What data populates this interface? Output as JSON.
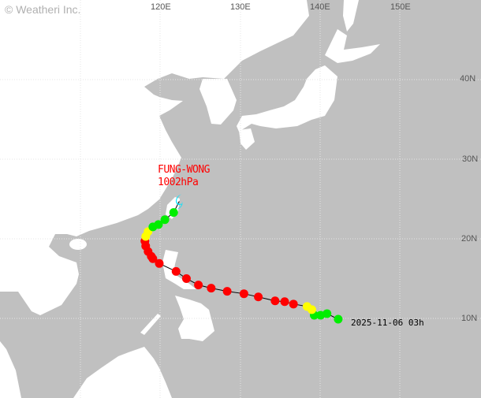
{
  "copyright": "© Weatheri Inc.",
  "axes": {
    "lon_labels": [
      "120E",
      "130E",
      "140E",
      "150E"
    ],
    "lat_labels": [
      "40N",
      "30N",
      "20N",
      "10N"
    ]
  },
  "storm": {
    "name": "FUNG-WONG",
    "pressure": "1002hPa",
    "start_label": "2025-11-06 03h"
  },
  "colors": {
    "land": "#ffffff",
    "sea": "#c0c0c0",
    "track_line": "#000000",
    "red": "#ff0000",
    "yellow": "#ffff00",
    "green": "#00ee00",
    "cyan": "#00e5ff"
  },
  "track": [
    {
      "lon": 142.3,
      "lat": 9.9,
      "color": "green"
    },
    {
      "lon": 140.9,
      "lat": 10.6,
      "color": "green"
    },
    {
      "lon": 140.1,
      "lat": 10.4,
      "color": "green"
    },
    {
      "lon": 139.3,
      "lat": 10.4,
      "color": "green"
    },
    {
      "lon": 139.0,
      "lat": 11.1,
      "color": "yellow"
    },
    {
      "lon": 138.4,
      "lat": 11.5,
      "color": "yellow"
    },
    {
      "lon": 136.7,
      "lat": 11.8,
      "color": "red"
    },
    {
      "lon": 135.6,
      "lat": 12.1,
      "color": "red"
    },
    {
      "lon": 134.4,
      "lat": 12.2,
      "color": "red"
    },
    {
      "lon": 132.3,
      "lat": 12.7,
      "color": "red"
    },
    {
      "lon": 130.5,
      "lat": 13.1,
      "color": "red"
    },
    {
      "lon": 128.4,
      "lat": 13.4,
      "color": "red"
    },
    {
      "lon": 126.4,
      "lat": 13.8,
      "color": "red"
    },
    {
      "lon": 124.8,
      "lat": 14.2,
      "color": "red"
    },
    {
      "lon": 123.3,
      "lat": 15.0,
      "color": "red"
    },
    {
      "lon": 122.0,
      "lat": 15.9,
      "color": "red"
    },
    {
      "lon": 119.9,
      "lat": 16.9,
      "color": "red"
    },
    {
      "lon": 119.1,
      "lat": 17.5,
      "color": "red"
    },
    {
      "lon": 118.9,
      "lat": 17.8,
      "color": "red"
    },
    {
      "lon": 118.5,
      "lat": 18.4,
      "color": "red"
    },
    {
      "lon": 118.2,
      "lat": 19.1,
      "color": "red"
    },
    {
      "lon": 118.1,
      "lat": 19.7,
      "color": "red"
    },
    {
      "lon": 118.2,
      "lat": 20.3,
      "color": "yellow"
    },
    {
      "lon": 118.5,
      "lat": 20.9,
      "color": "yellow"
    },
    {
      "lon": 119.1,
      "lat": 21.5,
      "color": "green"
    },
    {
      "lon": 119.8,
      "lat": 21.8,
      "color": "green"
    },
    {
      "lon": 120.6,
      "lat": 22.4,
      "color": "green"
    },
    {
      "lon": 121.7,
      "lat": 23.3,
      "color": "green"
    },
    {
      "lon": 122.4,
      "lat": 24.7,
      "color": "cyan",
      "symbol": "typhoon"
    }
  ]
}
